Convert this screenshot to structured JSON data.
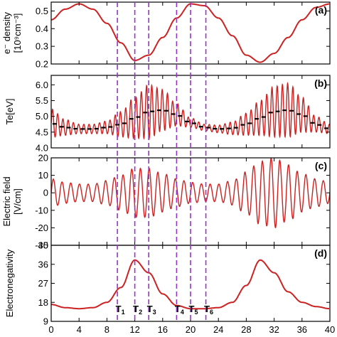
{
  "chart_data": [
    {
      "panel": "a",
      "type": "line",
      "tag": "(a)",
      "ylabel_lines": [
        "e⁻ density",
        "[10⁹cm⁻³]"
      ],
      "ylim": [
        0.2,
        0.55
      ],
      "yticks": [
        0.2,
        0.3,
        0.4,
        0.5
      ],
      "color": "#cc2222",
      "series": [
        {
          "x": [
            0,
            2,
            4,
            6,
            8,
            10,
            12,
            14,
            16,
            18,
            20,
            22,
            24,
            26,
            28,
            30,
            32,
            34,
            36,
            38,
            40
          ],
          "y": [
            0.45,
            0.51,
            0.54,
            0.51,
            0.43,
            0.32,
            0.22,
            0.25,
            0.35,
            0.46,
            0.54,
            0.53,
            0.46,
            0.36,
            0.25,
            0.21,
            0.26,
            0.35,
            0.45,
            0.52,
            0.54
          ]
        }
      ]
    },
    {
      "panel": "b",
      "type": "line",
      "tag": "(b)",
      "ylabel_lines": [
        "Te[eV]"
      ],
      "ylim": [
        4.0,
        6.3
      ],
      "yticks": [
        4.0,
        4.5,
        5.0,
        5.5,
        6.0
      ],
      "color": "#cc2222",
      "series": [
        {
          "x": [
            0,
            2,
            4,
            6,
            8,
            10,
            12,
            14,
            16,
            18,
            20,
            22,
            24,
            26,
            28,
            30,
            32,
            34,
            36,
            38,
            40
          ],
          "y": [
            4.78,
            4.65,
            4.6,
            4.6,
            4.65,
            4.75,
            4.95,
            5.15,
            5.2,
            5.05,
            4.8,
            4.65,
            4.6,
            4.62,
            4.75,
            4.95,
            5.15,
            5.2,
            5.05,
            4.75,
            4.6
          ]
        }
      ],
      "oscillation_amplitude": [
        0.45,
        0.25,
        0.15,
        0.15,
        0.2,
        0.4,
        0.65,
        0.85,
        0.65,
        0.35,
        0.15,
        0.1,
        0.12,
        0.2,
        0.35,
        0.55,
        0.8,
        0.85,
        0.55,
        0.25,
        0.15
      ],
      "oscillation_period": 0.75
    },
    {
      "panel": "c",
      "type": "line",
      "tag": "(c)",
      "ylabel_lines": [
        "Electric field",
        "[V/cm]"
      ],
      "ylim": [
        -30,
        20
      ],
      "yticks": [
        -30,
        -20,
        -10,
        0,
        10,
        20
      ],
      "color": "#cc2222",
      "envelope_x": [
        0,
        2,
        4,
        6,
        8,
        10,
        12,
        14,
        16,
        18,
        20,
        22,
        24,
        26,
        28,
        30,
        32,
        34,
        36,
        38,
        40
      ],
      "envelope": [
        8,
        6,
        5,
        5,
        7,
        10,
        14,
        14,
        11,
        8,
        6,
        5,
        5,
        7,
        12,
        18,
        20,
        16,
        11,
        8,
        6
      ],
      "oscillation_period": 1.25
    },
    {
      "panel": "d",
      "type": "line",
      "tag": "(d)",
      "ylabel_lines": [
        "Electronegativity"
      ],
      "ylim": [
        9,
        45
      ],
      "yticks": [
        9,
        18,
        27,
        36,
        45
      ],
      "color": "#cc2222",
      "series": [
        {
          "x": [
            0,
            2,
            4,
            6,
            8,
            10,
            12,
            14,
            16,
            18,
            20,
            22,
            24,
            26,
            28,
            30,
            32,
            34,
            36,
            38,
            40
          ],
          "y": [
            17,
            15.5,
            15,
            15.5,
            18,
            25,
            38,
            32,
            22,
            16.5,
            15,
            15,
            15.5,
            18,
            26,
            38,
            32,
            23,
            18,
            16,
            15
          ]
        }
      ],
      "xlabel": "",
      "xlim": [
        0,
        40
      ],
      "xticks": [
        0,
        4,
        8,
        12,
        16,
        20,
        24,
        28,
        32,
        36,
        40
      ]
    }
  ],
  "markers": {
    "x": [
      9.5,
      12,
      14,
      18,
      20,
      22.2
    ],
    "labels": [
      {
        "main": "T",
        "sub": "1"
      },
      {
        "main": "T",
        "sub": "2"
      },
      {
        "main": "T",
        "sub": "3"
      },
      {
        "main": "T",
        "sub": "4"
      },
      {
        "main": "T",
        "sub": "5"
      },
      {
        "main": "T",
        "sub": "6"
      }
    ],
    "color": "#9933cc",
    "style": "dashed"
  },
  "colors": {
    "line": "#cc2222",
    "marker_line": "#9933cc",
    "te_mean": "#000000"
  }
}
